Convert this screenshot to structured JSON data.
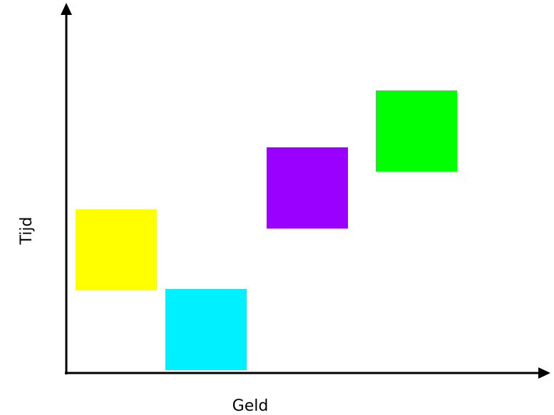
{
  "axes": {
    "x_label": "Geld",
    "y_label": "Tijd"
  },
  "blocks": [
    {
      "name": "yellow-square",
      "color": "#ffff00"
    },
    {
      "name": "cyan-square",
      "color": "#00f0ff"
    },
    {
      "name": "purple-square",
      "color": "#9900ff"
    },
    {
      "name": "green-square",
      "color": "#00ff00"
    }
  ]
}
